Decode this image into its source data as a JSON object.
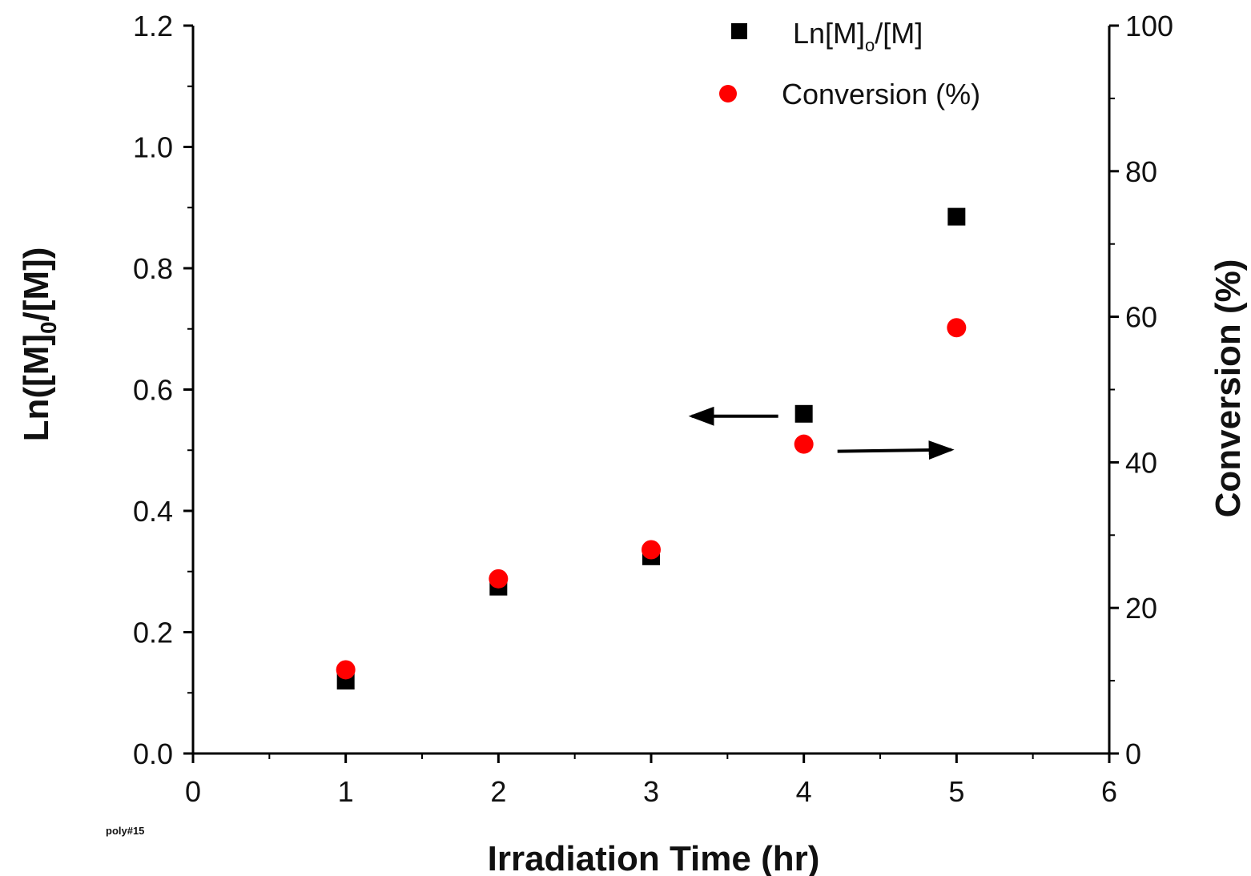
{
  "chart_data": {
    "type": "scatter",
    "xlabel": "Irradiation Time (hr)",
    "ylabel_left": {
      "main": "Ln([M]",
      "sub": "0",
      "tail": "/[M])"
    },
    "ylabel_right": "Conversion (%)",
    "xlim": [
      0,
      6
    ],
    "ylim_left": [
      0,
      1.2
    ],
    "ylim_right": [
      0,
      100
    ],
    "x_ticks": [
      "0",
      "1",
      "2",
      "3",
      "4",
      "5",
      "6"
    ],
    "y_ticks_left": [
      "0.0",
      "0.2",
      "0.4",
      "0.6",
      "0.8",
      "1.0",
      "1.2"
    ],
    "y_ticks_right": [
      "0",
      "20",
      "40",
      "60",
      "80",
      "100"
    ],
    "footnote": "poly#15",
    "series": [
      {
        "name": {
          "main": "Ln[M]",
          "sub": "o",
          "tail": "/[M]"
        },
        "axis": "left",
        "marker": "square",
        "color": "#000000",
        "x": [
          1,
          2,
          3,
          4,
          5
        ],
        "y": [
          0.12,
          0.275,
          0.325,
          0.56,
          0.885
        ]
      },
      {
        "name": "Conversion (%)",
        "axis": "right",
        "marker": "circle",
        "color": "#ff0000",
        "x": [
          1,
          2,
          3,
          4,
          5
        ],
        "y": [
          11.5,
          24.0,
          28.0,
          42.5,
          58.5
        ]
      }
    ],
    "annotations": [
      {
        "type": "arrow",
        "points_to": "left-axis",
        "near_series": "Ln[M]o/[M]"
      },
      {
        "type": "arrow",
        "points_to": "right-axis",
        "near_series": "Conversion (%)"
      }
    ],
    "legend": "top-right",
    "grid": false
  }
}
